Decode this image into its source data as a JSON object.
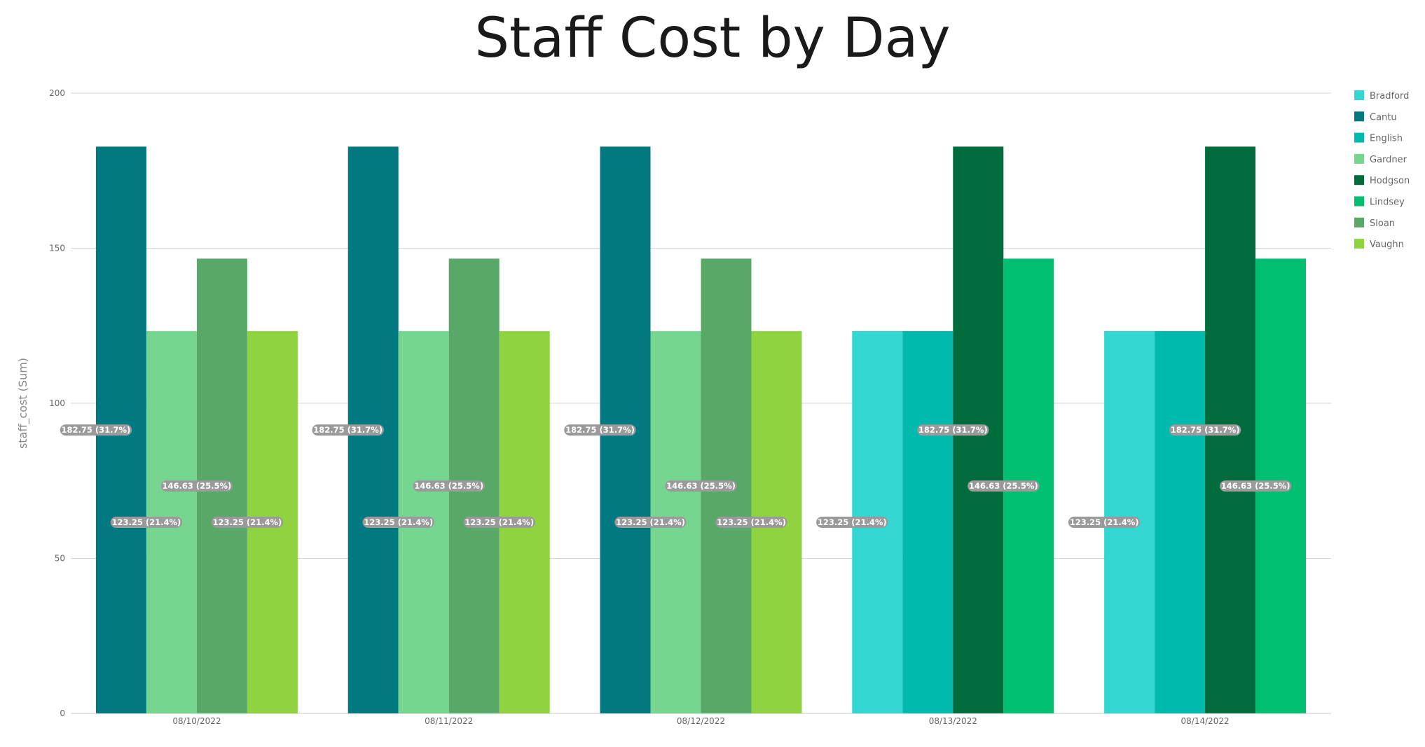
{
  "chart_data": {
    "type": "bar",
    "title": "Staff Cost by Day",
    "xlabel": "",
    "ylabel": "staff_cost (Sum)",
    "ylim": [
      0,
      200
    ],
    "yticks": [
      0,
      50,
      100,
      150,
      200
    ],
    "grid": true,
    "legend_position": "right",
    "categories": [
      "08/10/2022",
      "08/11/2022",
      "08/12/2022",
      "08/13/2022",
      "08/14/2022"
    ],
    "series": [
      {
        "name": "Bradford",
        "color": "#33d6d0",
        "values": [
          null,
          null,
          null,
          123.25,
          123.25
        ],
        "labels": [
          null,
          null,
          null,
          "123.25 (21.4%)",
          "123.25 (21.4%)"
        ]
      },
      {
        "name": "Cantu",
        "color": "#007a80",
        "values": [
          182.75,
          182.75,
          182.75,
          null,
          null
        ],
        "labels": [
          "182.75 (31.7%)",
          "182.75 (31.7%)",
          "182.75 (31.7%)",
          null,
          null
        ]
      },
      {
        "name": "English",
        "color": "#00bbad",
        "values": [
          null,
          null,
          null,
          123.25,
          123.25
        ],
        "labels": [
          null,
          null,
          null,
          null,
          null
        ]
      },
      {
        "name": "Gardner",
        "color": "#76d68f",
        "values": [
          123.25,
          123.25,
          123.25,
          null,
          null
        ],
        "labels": [
          "123.25 (21.4%)",
          "123.25 (21.4%)",
          "123.25 (21.4%)",
          null,
          null
        ]
      },
      {
        "name": "Hodgson",
        "color": "#006b3b",
        "values": [
          null,
          null,
          null,
          182.75,
          182.75
        ],
        "labels": [
          null,
          null,
          null,
          "182.75 (31.7%)",
          "182.75 (31.7%)"
        ]
      },
      {
        "name": "Lindsey",
        "color": "#00bf71",
        "values": [
          null,
          null,
          null,
          146.63,
          146.63
        ],
        "labels": [
          null,
          null,
          null,
          "146.63 (25.5%)",
          "146.63 (25.5%)"
        ]
      },
      {
        "name": "Sloan",
        "color": "#58a868",
        "values": [
          146.63,
          146.63,
          146.63,
          null,
          null
        ],
        "labels": [
          "146.63 (25.5%)",
          "146.63 (25.5%)",
          "146.63 (25.5%)",
          null,
          null
        ]
      },
      {
        "name": "Vaughn",
        "color": "#8fd340",
        "values": [
          123.25,
          123.25,
          123.25,
          null,
          null
        ],
        "labels": [
          "123.25 (21.4%)",
          "123.25 (21.4%)",
          "123.25 (21.4%)",
          null,
          null
        ]
      }
    ]
  }
}
